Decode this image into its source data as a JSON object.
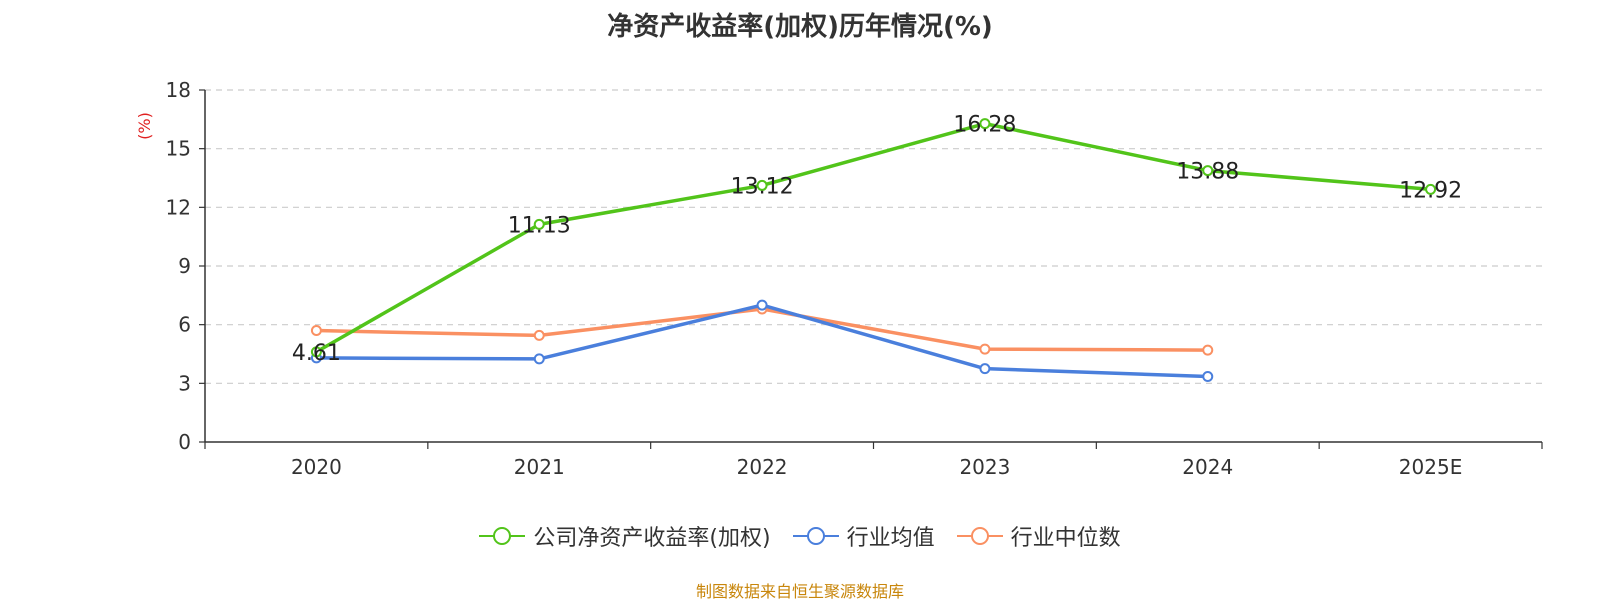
{
  "title": "净资产收益率(加权)历年情况(%)",
  "footer": "制图数据来自恒生聚源数据库",
  "colors": {
    "company": "#52c41a",
    "industry_avg": "#4a7fdc",
    "industry_median": "#fa9062",
    "axis_unit": "#e02020"
  },
  "chart_data": {
    "type": "line",
    "title": "净资产收益率(加权)历年情况(%)",
    "xlabel": "",
    "ylabel": "(%)",
    "categories": [
      "2020",
      "2021",
      "2022",
      "2023",
      "2024",
      "2025E"
    ],
    "ylim": [
      0,
      18
    ],
    "yticks": [
      0,
      3,
      6,
      9,
      12,
      15,
      18
    ],
    "grid": true,
    "legend_position": "bottom",
    "series": [
      {
        "name": "公司净资产收益率(加权)",
        "color": "#52c41a",
        "values": [
          4.61,
          11.13,
          13.12,
          16.28,
          13.88,
          12.92
        ],
        "labels": [
          "4.61",
          "11.13",
          "13.12",
          "16.28",
          "13.88",
          "12.92"
        ]
      },
      {
        "name": "行业均值",
        "color": "#4a7fdc",
        "values": [
          4.3,
          4.25,
          7.0,
          3.75,
          3.35,
          null
        ]
      },
      {
        "name": "行业中位数",
        "color": "#fa9062",
        "values": [
          5.7,
          5.45,
          6.8,
          4.75,
          4.7,
          null
        ]
      }
    ]
  }
}
